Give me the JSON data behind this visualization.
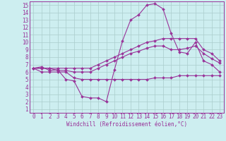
{
  "xlabel": "Windchill (Refroidissement éolien,°C)",
  "background_color": "#cdeef0",
  "grid_color": "#aacccc",
  "line_color": "#993399",
  "xlim": [
    -0.5,
    23.5
  ],
  "ylim": [
    0.5,
    15.5
  ],
  "xticks": [
    0,
    1,
    2,
    3,
    4,
    5,
    6,
    7,
    8,
    9,
    10,
    11,
    12,
    13,
    14,
    15,
    16,
    17,
    18,
    19,
    20,
    21,
    22,
    23
  ],
  "yticks": [
    1,
    2,
    3,
    4,
    5,
    6,
    7,
    8,
    9,
    10,
    11,
    12,
    13,
    14,
    15
  ],
  "series": [
    [
      6.5,
      6.7,
      6.2,
      6.3,
      5.0,
      4.8,
      2.7,
      2.5,
      2.5,
      2.0,
      6.3,
      10.2,
      13.0,
      13.7,
      15.0,
      15.2,
      14.5,
      11.2,
      8.7,
      8.5,
      10.0,
      7.5,
      7.0,
      6.0
    ],
    [
      6.5,
      6.0,
      6.0,
      6.0,
      6.0,
      5.2,
      5.0,
      5.0,
      5.0,
      5.0,
      5.0,
      5.0,
      5.0,
      5.0,
      5.0,
      5.2,
      5.2,
      5.2,
      5.5,
      5.5,
      5.5,
      5.5,
      5.5,
      5.5
    ],
    [
      6.5,
      6.5,
      6.5,
      6.2,
      6.2,
      6.0,
      6.0,
      6.0,
      6.5,
      7.0,
      7.5,
      8.0,
      8.5,
      8.8,
      9.2,
      9.5,
      9.5,
      9.0,
      9.0,
      9.2,
      9.5,
      8.5,
      7.8,
      7.2
    ],
    [
      6.5,
      6.5,
      6.5,
      6.5,
      6.5,
      6.5,
      6.5,
      6.5,
      7.0,
      7.5,
      8.0,
      8.5,
      9.0,
      9.5,
      10.0,
      10.2,
      10.5,
      10.5,
      10.5,
      10.5,
      10.5,
      9.0,
      8.5,
      7.5
    ]
  ],
  "tick_fontsize": 5.5,
  "xlabel_fontsize": 5.5,
  "marker_size": 2.0,
  "linewidth": 0.8
}
